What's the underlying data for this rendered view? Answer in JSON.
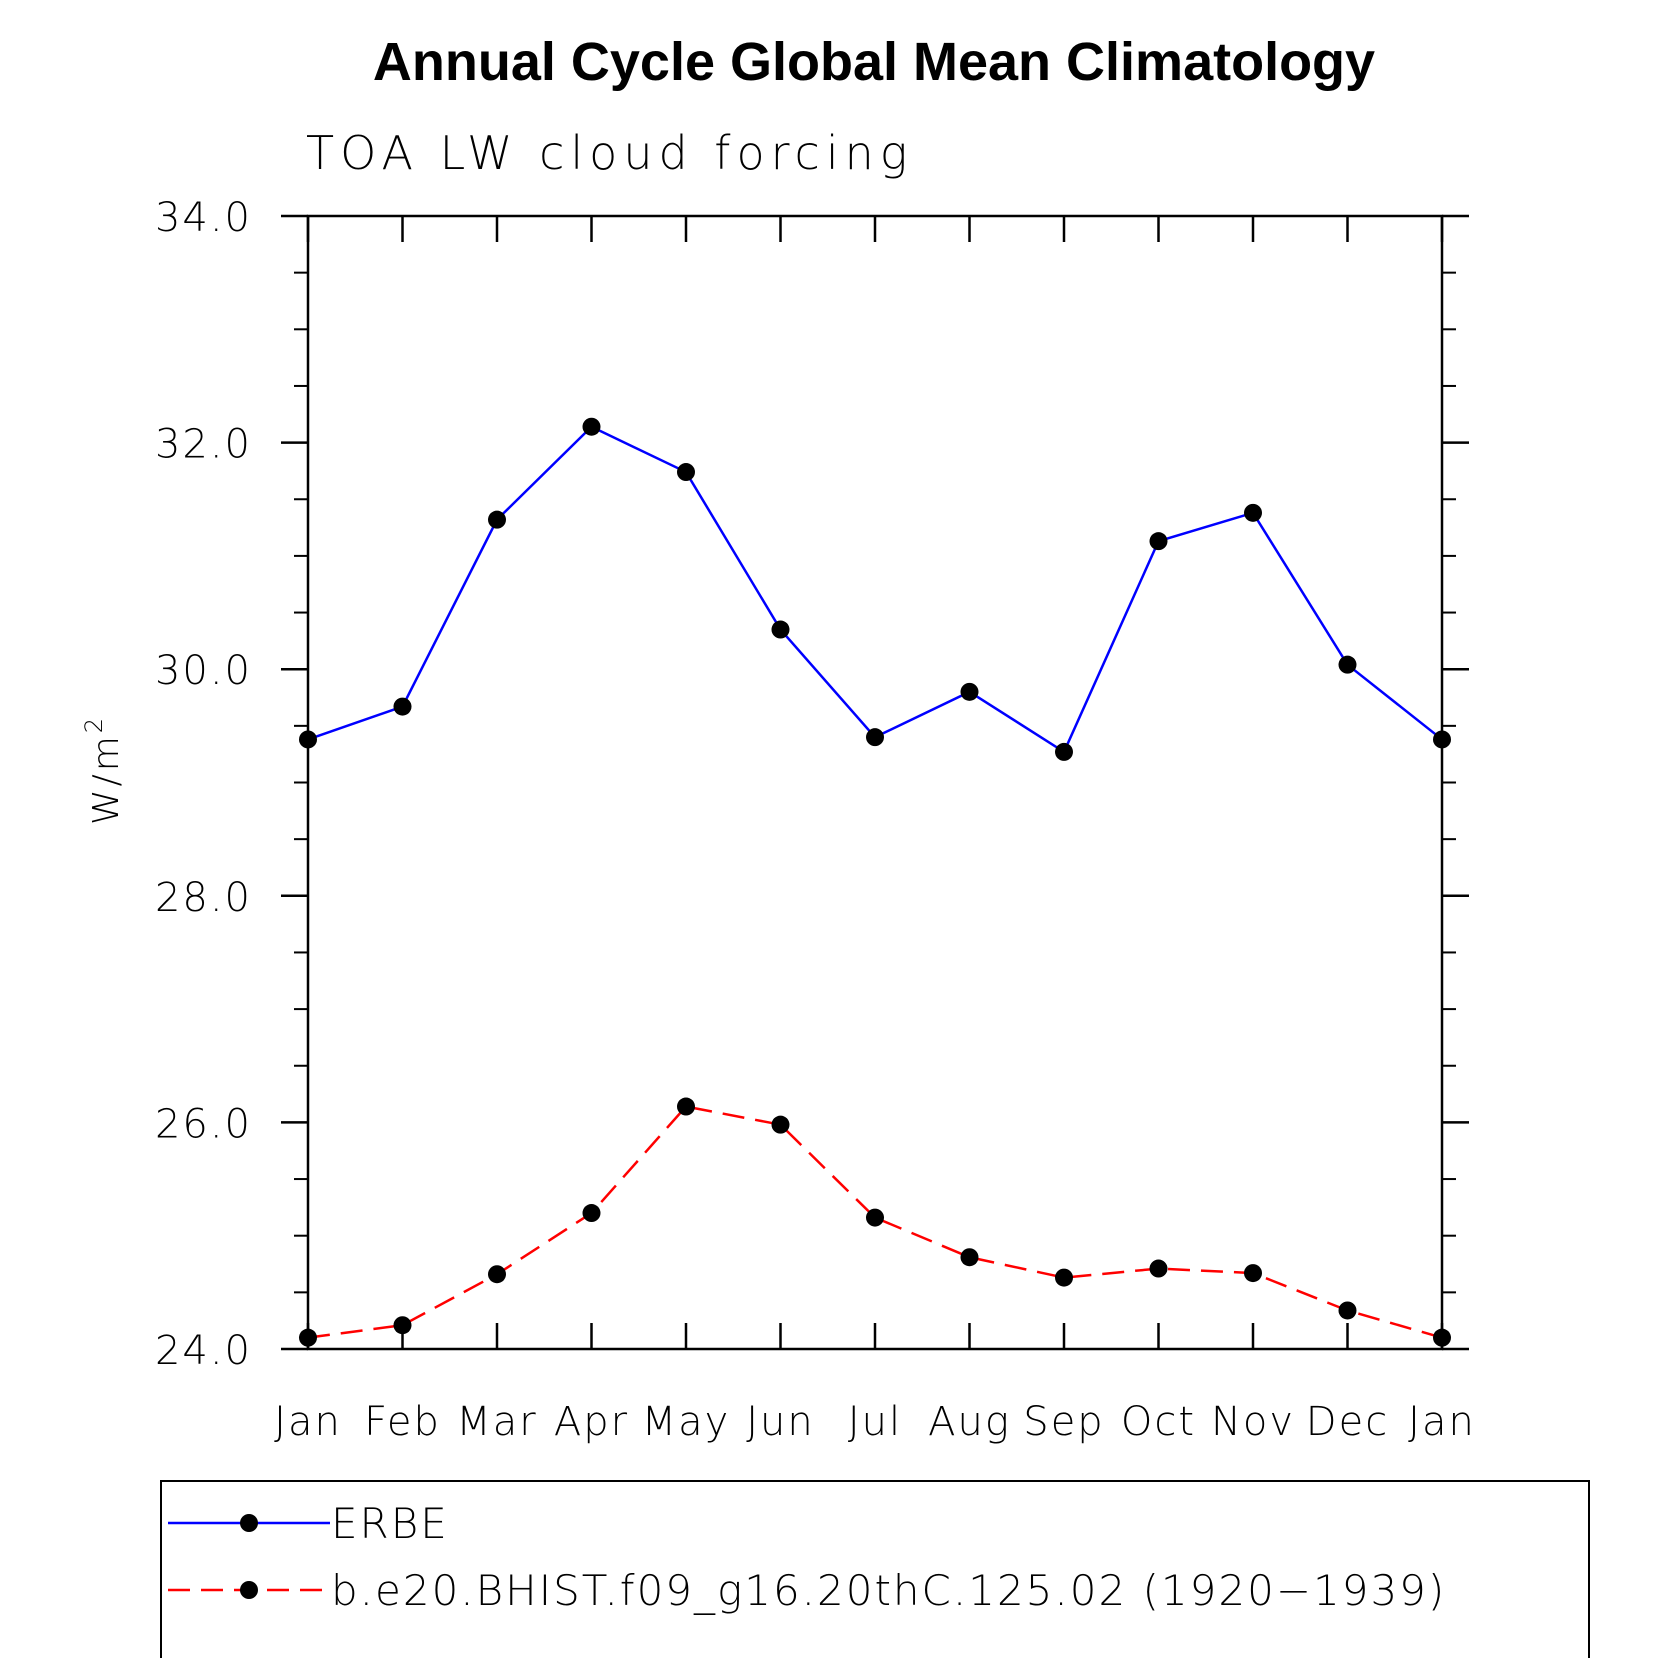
{
  "chart_data": {
    "type": "line",
    "title": "Annual Cycle Global Mean Climatology",
    "subtitle": "TOA LW cloud forcing",
    "ylabel_base": "W/m",
    "ylabel_sup": "2",
    "categories": [
      "Jan",
      "Feb",
      "Mar",
      "Apr",
      "May",
      "Jun",
      "Jul",
      "Aug",
      "Sep",
      "Oct",
      "Nov",
      "Dec",
      "Jan"
    ],
    "ylim": [
      24.0,
      34.0
    ],
    "yticks": [
      24.0,
      26.0,
      28.0,
      30.0,
      32.0,
      34.0
    ],
    "ytick_labels": [
      "24.0",
      "26.0",
      "28.0",
      "30.0",
      "32.0",
      "34.0"
    ],
    "y_minor_step": 0.5,
    "grid": false,
    "legend_position": "bottom",
    "series": [
      {
        "name": "ERBE",
        "color": "#0000ff",
        "dash": "solid",
        "marker": "filled-circle",
        "values": [
          29.38,
          29.67,
          31.32,
          32.14,
          31.74,
          30.35,
          29.4,
          29.8,
          29.27,
          31.13,
          31.38,
          30.04,
          29.38
        ]
      },
      {
        "name": "b.e20.BHIST.f09_g16.20thC.125.02 (1920−1939)",
        "color": "#ff0000",
        "dash": "dashed",
        "marker": "filled-circle",
        "values": [
          24.1,
          24.21,
          24.66,
          25.2,
          26.14,
          25.98,
          25.16,
          24.81,
          24.63,
          24.71,
          24.67,
          24.34,
          24.1
        ]
      }
    ]
  }
}
